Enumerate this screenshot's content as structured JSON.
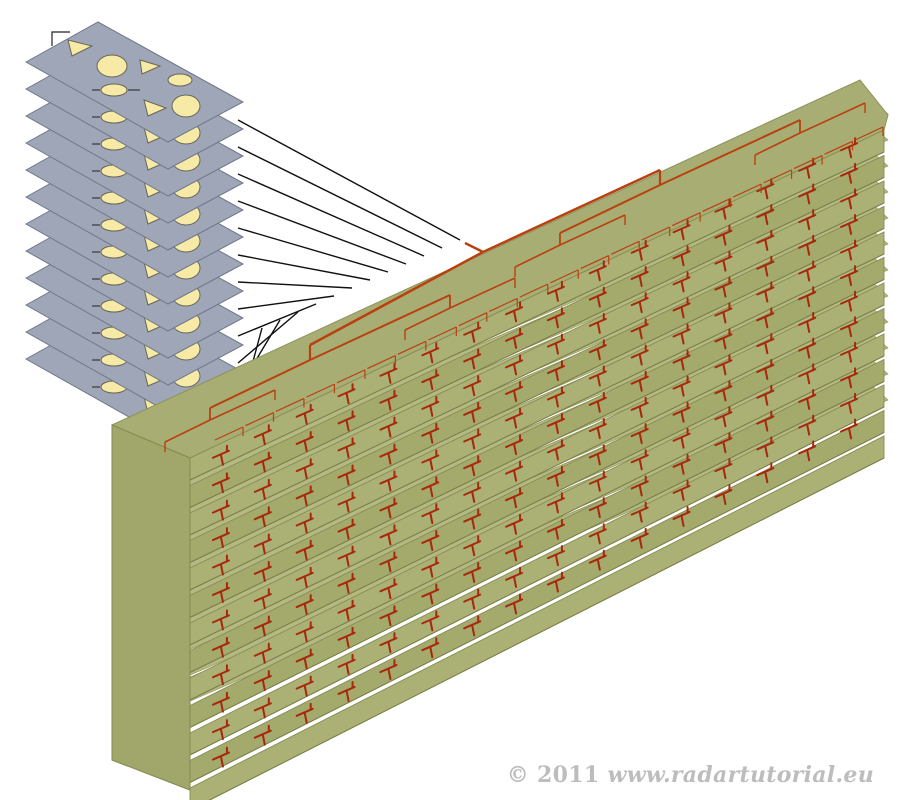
{
  "diagram": {
    "boards": {
      "count": 12,
      "columns": 16,
      "board_color": "#a8ad74",
      "board_top_color": "#b4b982",
      "board_front_color": "#9da266",
      "feed_color": "#b8410f",
      "element_color": "#a8280d"
    },
    "modules": {
      "count": 12,
      "plate_color": "#9ea6b8",
      "shape_fill": "#f7eaa6",
      "shape_stroke": "#666655"
    },
    "wiring": {
      "color": "#111111"
    }
  },
  "footer": {
    "copyright_symbol": "©",
    "year": "2011",
    "site": "www.radartutorial.eu"
  }
}
